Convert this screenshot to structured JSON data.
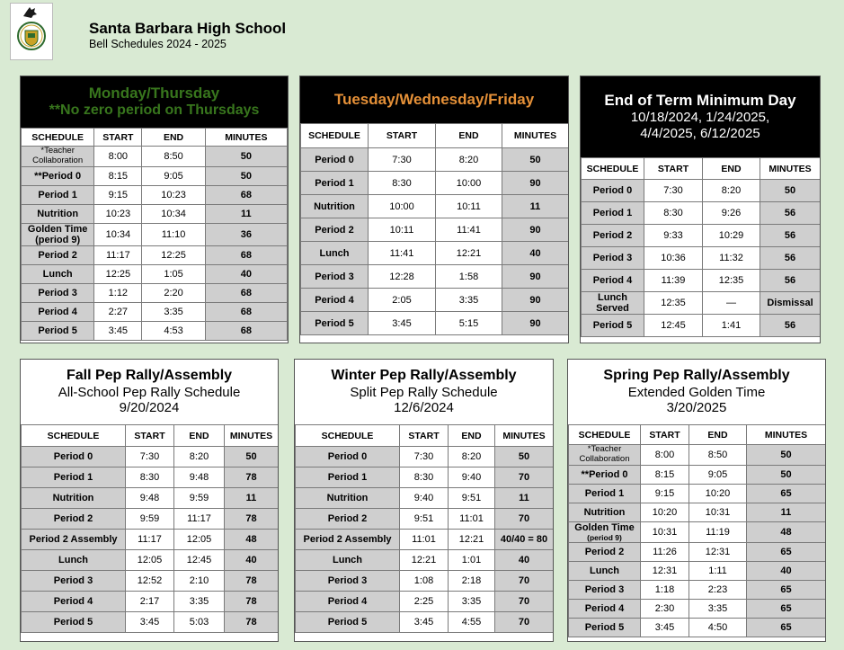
{
  "header": {
    "school_name": "Santa Barbara High School",
    "subtitle": "Bell Schedules 2024 - 2025"
  },
  "colors": {
    "page_bg": "#d9ead3",
    "green_title": "#38761d",
    "gold_title": "#e69138",
    "cell_gray": "#cfcfcf"
  },
  "columns": [
    "SCHEDULE",
    "START",
    "END",
    "MINUTES"
  ],
  "panels": [
    {
      "id": "monday-thursday",
      "head_style": "dark",
      "title_lines": [
        "Monday/Thursday",
        "**No zero period on Thursdays"
      ],
      "title_color": "#38761d",
      "rows": [
        [
          "*Teacher Collaboration",
          "8:00",
          "8:50",
          "50"
        ],
        [
          "**Period 0",
          "8:15",
          "9:05",
          "50"
        ],
        [
          "Period 1",
          "9:15",
          "10:23",
          "68"
        ],
        [
          "Nutrition",
          "10:23",
          "10:34",
          "11"
        ],
        [
          "Golden Time (period 9)",
          "10:34",
          "11:10",
          "36"
        ],
        [
          "Period 2",
          "11:17",
          "12:25",
          "68"
        ],
        [
          "Lunch",
          "12:25",
          "1:05",
          "40"
        ],
        [
          "Period 3",
          "1:12",
          "2:20",
          "68"
        ],
        [
          "Period 4",
          "2:27",
          "3:35",
          "68"
        ],
        [
          "Period 5",
          "3:45",
          "4:53",
          "68"
        ]
      ]
    },
    {
      "id": "tuesday-wednesday-friday",
      "head_style": "dark",
      "title_lines": [
        "Tuesday/Wednesday/Friday"
      ],
      "title_color": "#e69138",
      "rows": [
        [
          "Period 0",
          "7:30",
          "8:20",
          "50"
        ],
        [
          "Period 1",
          "8:30",
          "10:00",
          "90"
        ],
        [
          "Nutrition",
          "10:00",
          "10:11",
          "11"
        ],
        [
          "Period 2",
          "10:11",
          "11:41",
          "90"
        ],
        [
          "Lunch",
          "11:41",
          "12:21",
          "40"
        ],
        [
          "Period 3",
          "12:28",
          "1:58",
          "90"
        ],
        [
          "Period 4",
          "2:05",
          "3:35",
          "90"
        ],
        [
          "Period 5",
          "3:45",
          "5:15",
          "90"
        ]
      ]
    },
    {
      "id": "end-of-term-minimum-day",
      "head_style": "dark",
      "title_lines": [
        "End of Term Minimum Day",
        "10/18/2024, 1/24/2025,",
        "4/4/2025, 6/12/2025"
      ],
      "title_color": "#ffffff",
      "rows": [
        [
          "Period 0",
          "7:30",
          "8:20",
          "50"
        ],
        [
          "Period 1",
          "8:30",
          "9:26",
          "56"
        ],
        [
          "Period 2",
          "9:33",
          "10:29",
          "56"
        ],
        [
          "Period 3",
          "10:36",
          "11:32",
          "56"
        ],
        [
          "Period 4",
          "11:39",
          "12:35",
          "56"
        ],
        [
          "Lunch Served",
          "12:35",
          "—",
          "Dismissal"
        ],
        [
          "Period 5",
          "12:45",
          "1:41",
          "56"
        ]
      ]
    },
    {
      "id": "fall-pep-rally",
      "head_style": "light",
      "title_lines": [
        "Fall Pep Rally/Assembly",
        "All-School Pep Rally Schedule",
        "9/20/2024"
      ],
      "title_color": "#000000",
      "rows": [
        [
          "Period 0",
          "7:30",
          "8:20",
          "50"
        ],
        [
          "Period 1",
          "8:30",
          "9:48",
          "78"
        ],
        [
          "Nutrition",
          "9:48",
          "9:59",
          "11"
        ],
        [
          "Period 2",
          "9:59",
          "11:17",
          "78"
        ],
        [
          "Period 2 Assembly",
          "11:17",
          "12:05",
          "48"
        ],
        [
          "Lunch",
          "12:05",
          "12:45",
          "40"
        ],
        [
          "Period 3",
          "12:52",
          "2:10",
          "78"
        ],
        [
          "Period 4",
          "2:17",
          "3:35",
          "78"
        ],
        [
          "Period 5",
          "3:45",
          "5:03",
          "78"
        ]
      ]
    },
    {
      "id": "winter-pep-rally",
      "head_style": "light",
      "title_lines": [
        "Winter Pep Rally/Assembly",
        "Split Pep Rally Schedule",
        "12/6/2024"
      ],
      "title_color": "#000000",
      "rows": [
        [
          "Period 0",
          "7:30",
          "8:20",
          "50"
        ],
        [
          "Period 1",
          "8:30",
          "9:40",
          "70"
        ],
        [
          "Nutrition",
          "9:40",
          "9:51",
          "11"
        ],
        [
          "Period 2",
          "9:51",
          "11:01",
          "70"
        ],
        [
          "Period 2 Assembly",
          "11:01",
          "12:21",
          "40/40 = 80"
        ],
        [
          "Lunch",
          "12:21",
          "1:01",
          "40"
        ],
        [
          "Period 3",
          "1:08",
          "2:18",
          "70"
        ],
        [
          "Period 4",
          "2:25",
          "3:35",
          "70"
        ],
        [
          "Period 5",
          "3:45",
          "4:55",
          "70"
        ]
      ]
    },
    {
      "id": "spring-pep-rally",
      "head_style": "light",
      "title_lines": [
        "Spring Pep Rally/Assembly",
        "Extended Golden Time",
        "3/20/2025"
      ],
      "title_color": "#000000",
      "rows": [
        [
          "*Teacher Collaboration",
          "8:00",
          "8:50",
          "50"
        ],
        [
          "**Period 0",
          "8:15",
          "9:05",
          "50"
        ],
        [
          "Period 1",
          "9:15",
          "10:20",
          "65"
        ],
        [
          "Nutrition",
          "10:20",
          "10:31",
          "11"
        ],
        [
          "Golden Time (period 9)",
          "10:31",
          "11:19",
          "48"
        ],
        [
          "Period 2",
          "11:26",
          "12:31",
          "65"
        ],
        [
          "Lunch",
          "12:31",
          "1:11",
          "40"
        ],
        [
          "Period 3",
          "1:18",
          "2:23",
          "65"
        ],
        [
          "Period 4",
          "2:30",
          "3:35",
          "65"
        ],
        [
          "Period 5",
          "3:45",
          "4:50",
          "65"
        ]
      ]
    }
  ]
}
